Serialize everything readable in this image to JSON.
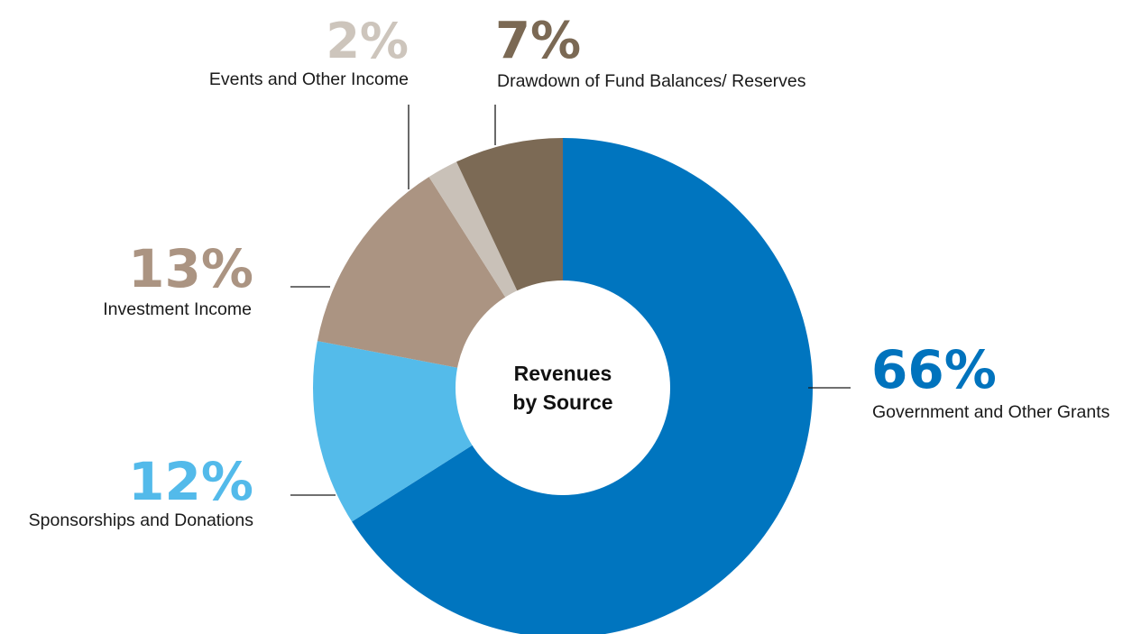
{
  "chart_data": {
    "type": "pie",
    "title": "Revenues by Source",
    "title_lines": [
      "Revenues",
      "by Source"
    ],
    "slices": [
      {
        "label": "Government and Other Grants",
        "value": 66,
        "value_label": "66%",
        "color": "#0075bf",
        "label_color": "#0073bd"
      },
      {
        "label": "Sponsorships and Donations",
        "value": 12,
        "value_label": "12%",
        "color": "#54bbea",
        "label_color": "#53baea"
      },
      {
        "label": "Investment Income",
        "value": 13,
        "value_label": "13%",
        "color": "#ab9482",
        "label_color": "#ab9482"
      },
      {
        "label": "Events and Other Income",
        "value": 2,
        "value_label": "2%",
        "color": "#c9c1b8",
        "label_color": "#cdc5bc"
      },
      {
        "label": "Drawdown of Fund Balances/ Reserves",
        "value": 7,
        "value_label": "7%",
        "color": "#7c6a55",
        "label_color": "#7b6954"
      }
    ],
    "legend": "none",
    "grid": false
  }
}
